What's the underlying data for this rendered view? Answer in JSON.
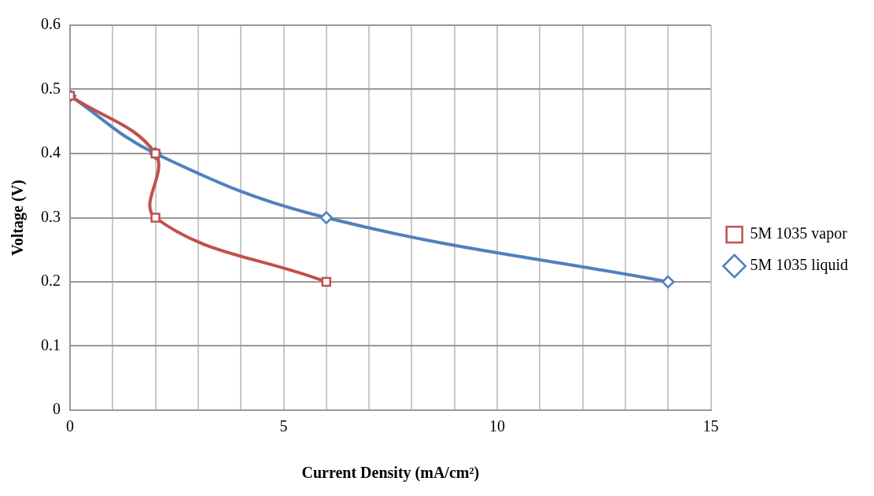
{
  "chart_data": {
    "type": "line",
    "xlabel": "Current Density (mA/cm²)",
    "ylabel": "Voltage (V)",
    "xlim": [
      0,
      15
    ],
    "xticks": [
      0,
      {
        "value": 1,
        "label": null
      },
      {
        "value": 2,
        "label": null
      },
      {
        "value": 3,
        "label": null
      },
      {
        "value": 4,
        "label": null
      },
      5,
      {
        "value": 6,
        "label": null
      },
      {
        "value": 7,
        "label": null
      },
      {
        "value": 8,
        "label": null
      },
      {
        "value": 9,
        "label": null
      },
      10,
      {
        "value": 11,
        "label": null
      },
      {
        "value": 12,
        "label": null
      },
      {
        "value": 13,
        "label": null
      },
      {
        "value": 14,
        "label": null
      },
      15
    ],
    "ylim": [
      0,
      0.6
    ],
    "yticks": [
      0,
      0.1,
      0.2,
      0.3,
      0.4,
      0.5,
      0.6
    ],
    "grid": true,
    "legend": "right",
    "series": [
      {
        "name": "5M 1035 liquid",
        "color": "#4f81bd",
        "marker": "diamond",
        "x": [
          0,
          2,
          6,
          14
        ],
        "values": [
          0.49,
          0.4,
          0.3,
          0.2
        ]
      },
      {
        "name": "5M 1035 vapor",
        "color": "#c0504d",
        "marker": "square",
        "x": [
          0,
          2,
          2,
          6
        ],
        "values": [
          0.49,
          0.4,
          0.3,
          0.2
        ]
      }
    ]
  }
}
